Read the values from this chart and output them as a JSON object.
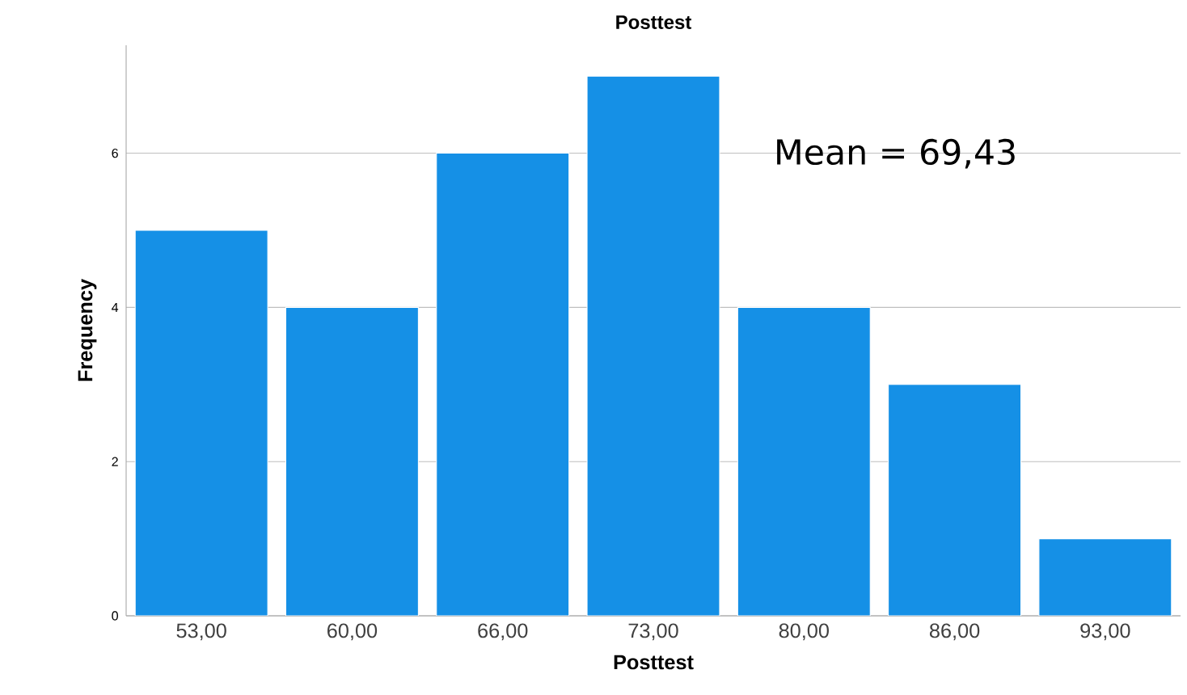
{
  "chart_data": {
    "type": "bar",
    "title": "Posttest",
    "xlabel": "Posttest",
    "ylabel": "Frequency",
    "categories": [
      "53,00",
      "60,00",
      "66,00",
      "73,00",
      "80,00",
      "86,00",
      "93,00"
    ],
    "values": [
      5,
      4,
      6,
      7,
      4,
      3,
      1
    ],
    "color": "#1590e6",
    "ylim": [
      0,
      7.4
    ],
    "yticks": [
      0,
      2,
      4,
      6
    ],
    "grid": "y",
    "annotations": [
      "Mean = 69,43"
    ]
  }
}
